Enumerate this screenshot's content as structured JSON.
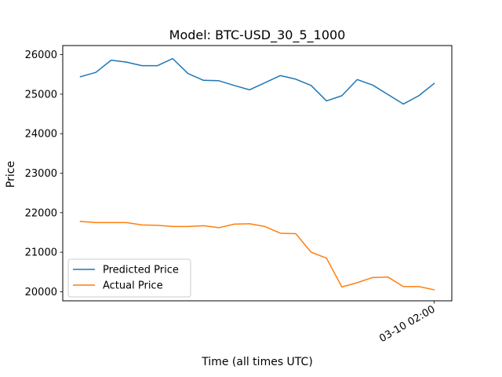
{
  "chart_data": {
    "type": "line",
    "title": "Model: BTC-USD_30_5_1000",
    "xlabel": "Time (all times UTC)",
    "ylabel": "Price",
    "ylim": [
      19770,
      26230
    ],
    "yticks": [
      20000,
      21000,
      22000,
      23000,
      24000,
      25000,
      26000
    ],
    "xtick_labels": [
      {
        "index": 23,
        "label": "03-10 02:00"
      }
    ],
    "grid": false,
    "legend_position": "lower-left",
    "series": [
      {
        "name": "Predicted Price",
        "color": "#1f77b4",
        "values": [
          25440,
          25550,
          25860,
          25810,
          25720,
          25720,
          25900,
          25520,
          25350,
          25340,
          25220,
          25110,
          25290,
          25470,
          25380,
          25220,
          24830,
          24960,
          25370,
          25230,
          24990,
          24750,
          24960,
          25270
        ]
      },
      {
        "name": "Actual Price",
        "color": "#ff7f0e",
        "values": [
          21780,
          21750,
          21750,
          21750,
          21690,
          21680,
          21650,
          21650,
          21670,
          21620,
          21710,
          21720,
          21650,
          21480,
          21470,
          21000,
          20850,
          20120,
          20230,
          20360,
          20370,
          20130,
          20130,
          20050
        ]
      }
    ]
  }
}
